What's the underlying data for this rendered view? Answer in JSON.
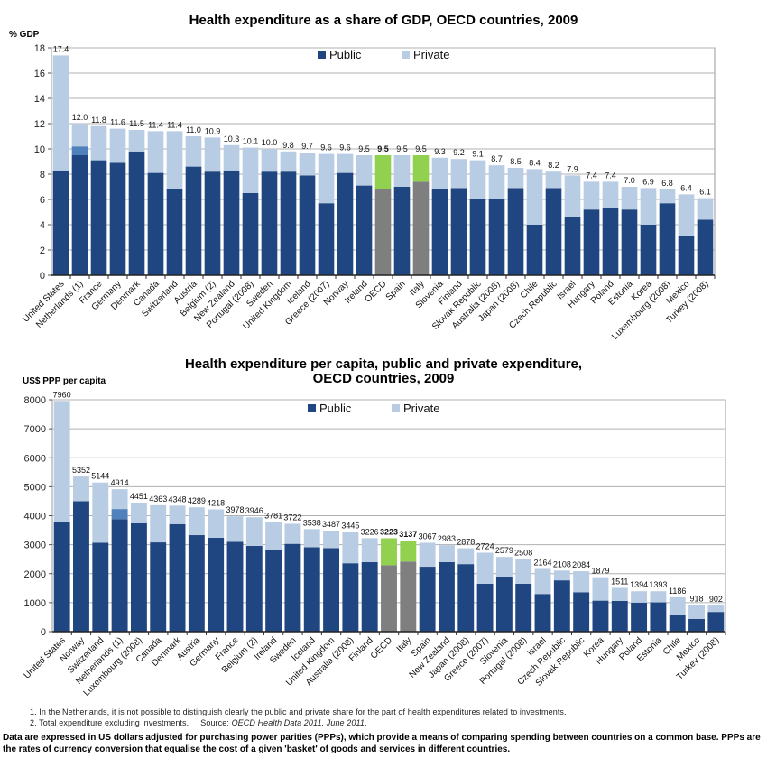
{
  "chart_data": [
    {
      "type": "bar",
      "stacked": true,
      "title": "Health expenditure as a share of GDP, OECD countries, 2009",
      "ylabel": "% GDP",
      "xlabel": "",
      "ylim": [
        0,
        18
      ],
      "yticks": [
        0,
        2,
        4,
        6,
        8,
        10,
        12,
        14,
        16,
        18
      ],
      "grid": true,
      "legend": {
        "position": "top-center",
        "entries": [
          "Public",
          "Private"
        ]
      },
      "colors": {
        "public": "#1f4680",
        "private": "#b8cce4",
        "investment": "#4f81bd",
        "oecd_public": "#7f7f7f",
        "oecd_private": "#92d050"
      },
      "categories": [
        "United States",
        "Netherlands (1)",
        "France",
        "Germany",
        "Denmark",
        "Canada",
        "Switzerland",
        "Austria",
        "Belgium (2)",
        "New Zealand",
        "Portugal (2008)",
        "Sweden",
        "United Kingdom",
        "Iceland",
        "Greece (2007)",
        "Norway",
        "Ireland",
        "OECD",
        "Spain",
        "Italy",
        "Slovenia",
        "Finland",
        "Slovak Republic",
        "Australia (2008)",
        "Japan (2008)",
        "Chile",
        "Czech Republic",
        "Israel",
        "Hungary",
        "Poland",
        "Estonia",
        "Korea",
        "Luxembourg (2008)",
        "Mexico",
        "Turkey (2008)"
      ],
      "totals": [
        17.4,
        12.0,
        11.8,
        11.6,
        11.5,
        11.4,
        11.4,
        11.0,
        10.9,
        10.3,
        10.1,
        10.0,
        9.8,
        9.7,
        9.6,
        9.6,
        9.5,
        9.5,
        9.5,
        9.5,
        9.3,
        9.2,
        9.1,
        8.7,
        8.5,
        8.4,
        8.2,
        7.9,
        7.4,
        7.4,
        7.0,
        6.9,
        6.8,
        6.4,
        6.1
      ],
      "total_labels": [
        "17.4",
        "12.0",
        "11.8",
        "11.6",
        "11.5",
        "11.4",
        "11.4",
        "11.0",
        "10.9",
        "10.3",
        "10.1",
        "10.0",
        "9.8",
        "9.7",
        "9.6",
        "9.6",
        "9.5",
        "9.5",
        "9.5",
        "9.5",
        "9.3",
        "9.2",
        "9.1",
        "8.7",
        "8.5",
        "8.4",
        "8.2",
        "7.9",
        "7.4",
        "7.4",
        "7.0",
        "6.9",
        "6.8",
        "6.4",
        "6.1"
      ],
      "series": [
        {
          "name": "Public",
          "values": [
            8.3,
            9.5,
            9.1,
            8.9,
            9.8,
            8.1,
            6.8,
            8.6,
            8.2,
            8.3,
            6.5,
            8.2,
            8.2,
            7.9,
            5.7,
            8.1,
            7.1,
            6.8,
            7.0,
            7.4,
            6.8,
            6.9,
            6.0,
            6.0,
            6.9,
            4.0,
            6.9,
            4.6,
            5.2,
            5.3,
            5.2,
            4.0,
            5.7,
            3.1,
            4.4
          ]
        },
        {
          "name": "Private",
          "values": [
            9.1,
            1.8,
            2.7,
            2.7,
            1.7,
            3.3,
            4.6,
            2.4,
            2.7,
            2.0,
            3.6,
            1.8,
            1.6,
            1.8,
            3.9,
            1.5,
            2.4,
            2.7,
            2.5,
            2.1,
            2.5,
            2.3,
            3.1,
            2.7,
            1.6,
            4.4,
            1.3,
            3.3,
            2.2,
            2.1,
            1.8,
            2.9,
            1.1,
            3.3,
            1.7
          ]
        },
        {
          "name": "Investment (Netherlands)",
          "values": [
            0,
            0.7,
            0,
            0,
            0,
            0,
            0,
            0,
            0,
            0,
            0,
            0,
            0,
            0,
            0,
            0,
            0,
            0,
            0,
            0,
            0,
            0,
            0,
            0,
            0,
            0,
            0,
            0,
            0,
            0,
            0,
            0,
            0,
            0,
            0
          ]
        }
      ],
      "highlight": [
        "OECD",
        "Italy"
      ],
      "bold_labels": [
        "OECD"
      ]
    },
    {
      "type": "bar",
      "stacked": true,
      "title": "Health expenditure per capita, public and private expenditure, OECD countries, 2009",
      "title_lines": [
        "Health expenditure per capita, public and private expenditure,",
        "OECD countries, 2009"
      ],
      "ylabel": "US$ PPP per capita",
      "xlabel": "",
      "ylim": [
        0,
        8000
      ],
      "yticks": [
        0,
        1000,
        2000,
        3000,
        4000,
        5000,
        6000,
        7000,
        8000
      ],
      "grid": true,
      "legend": {
        "position": "top-center",
        "entries": [
          "Public",
          "Private"
        ]
      },
      "colors": {
        "public": "#1f4680",
        "private": "#b8cce4",
        "investment": "#4f81bd",
        "oecd_public": "#7f7f7f",
        "oecd_private": "#92d050"
      },
      "categories": [
        "United States",
        "Norway",
        "Switzerland",
        "Netherlands (1)",
        "Luxembourg (2008)",
        "Canada",
        "Denmark",
        "Austria",
        "Germany",
        "France",
        "Belgium (2)",
        "Ireland",
        "Sweden",
        "Iceland",
        "United Kingdom",
        "Australia (2008)",
        "Finland",
        "OECD",
        "Italy",
        "Spain",
        "New Zealand",
        "Japan (2008)",
        "Greece (2007)",
        "Slovenia",
        "Portugal (2008)",
        "Israel",
        "Czech Republic",
        "Slovak Republic",
        "Korea",
        "Hungary",
        "Poland",
        "Estonia",
        "Chile",
        "Mexico",
        "Turkey (2008)"
      ],
      "totals": [
        7960,
        5352,
        5144,
        4914,
        4451,
        4363,
        4348,
        4289,
        4218,
        3978,
        3946,
        3781,
        3722,
        3538,
        3487,
        3445,
        3226,
        3223,
        3137,
        3067,
        2983,
        2878,
        2724,
        2579,
        2508,
        2164,
        2108,
        2084,
        1879,
        1511,
        1394,
        1393,
        1186,
        918,
        902
      ],
      "total_labels": [
        "7960",
        "5352",
        "5144",
        "4914",
        "4451",
        "4363",
        "4348",
        "4289",
        "4218",
        "3978",
        "3946",
        "3781",
        "3722",
        "3538",
        "3487",
        "3445",
        "3226",
        "3223",
        "3137",
        "3067",
        "2983",
        "2878",
        "2724",
        "2579",
        "2508",
        "2164",
        "2108",
        "2084",
        "1879",
        "1511",
        "1394",
        "1393",
        "1186",
        "918",
        "902"
      ],
      "series": [
        {
          "name": "Public",
          "values": [
            3795,
            4500,
            3070,
            3880,
            3740,
            3080,
            3710,
            3330,
            3240,
            3100,
            2960,
            2830,
            3030,
            2910,
            2880,
            2360,
            2400,
            2290,
            2420,
            2240,
            2400,
            2330,
            1650,
            1900,
            1650,
            1300,
            1770,
            1360,
            1070,
            1060,
            1000,
            1010,
            560,
            440,
            680
          ]
        },
        {
          "name": "Private",
          "values": [
            4165,
            852,
            2074,
            684,
            711,
            1283,
            638,
            959,
            978,
            878,
            986,
            951,
            692,
            628,
            607,
            1085,
            826,
            933,
            717,
            827,
            583,
            548,
            1074,
            679,
            858,
            864,
            338,
            724,
            809,
            451,
            394,
            383,
            626,
            478,
            222
          ]
        },
        {
          "name": "Investment (Netherlands)",
          "values": [
            0,
            0,
            0,
            350,
            0,
            0,
            0,
            0,
            0,
            0,
            0,
            0,
            0,
            0,
            0,
            0,
            0,
            0,
            0,
            0,
            0,
            0,
            0,
            0,
            0,
            0,
            0,
            0,
            0,
            0,
            0,
            0,
            0,
            0,
            0
          ]
        }
      ],
      "highlight": [
        "OECD",
        "Italy"
      ],
      "bold_labels": [
        "OECD",
        "Italy"
      ]
    }
  ],
  "notes": {
    "note1": "1. In the Netherlands, it is not possible to distinguish clearly the public and private share for the part of health expenditures related to investments.",
    "note2_prefix": "2. Total expenditure excluding investments.     Source: ",
    "note2_source": "OECD Health Data 2011, June 2011",
    "note2_suffix": ".",
    "footer_line1": "Data are expressed in US dollars adjusted for purchasing power parities (PPPs), which provide a means of comparing spending between countries on a common base. PPPs are",
    "footer_line2": "the rates of currency conversion that equalise the cost of a given 'basket' of goods and services in different countries."
  }
}
